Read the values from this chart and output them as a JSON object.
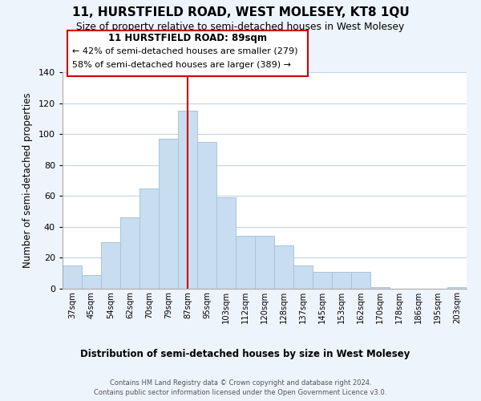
{
  "title": "11, HURSTFIELD ROAD, WEST MOLESEY, KT8 1QU",
  "subtitle": "Size of property relative to semi-detached houses in West Molesey",
  "xlabel": "Distribution of semi-detached houses by size in West Molesey",
  "ylabel": "Number of semi-detached properties",
  "bin_labels": [
    "37sqm",
    "45sqm",
    "54sqm",
    "62sqm",
    "70sqm",
    "79sqm",
    "87sqm",
    "95sqm",
    "103sqm",
    "112sqm",
    "120sqm",
    "128sqm",
    "137sqm",
    "145sqm",
    "153sqm",
    "162sqm",
    "170sqm",
    "178sqm",
    "186sqm",
    "195sqm",
    "203sqm"
  ],
  "bar_heights": [
    15,
    9,
    30,
    46,
    65,
    97,
    115,
    95,
    59,
    34,
    34,
    28,
    15,
    11,
    11,
    11,
    1,
    0,
    0,
    0,
    1
  ],
  "bar_color": "#c8ddf0",
  "bar_edge_color": "#a8c4dc",
  "highlight_index": 6,
  "vline_color": "#cc0000",
  "annotation_title": "11 HURSTFIELD ROAD: 89sqm",
  "annotation_line1": "← 42% of semi-detached houses are smaller (279)",
  "annotation_line2": "58% of semi-detached houses are larger (389) →",
  "annotation_box_color": "#ffffff",
  "annotation_box_edge": "#cc0000",
  "ylim": [
    0,
    140
  ],
  "yticks": [
    0,
    20,
    40,
    60,
    80,
    100,
    120,
    140
  ],
  "footer1": "Contains HM Land Registry data © Crown copyright and database right 2024.",
  "footer2": "Contains public sector information licensed under the Open Government Licence v3.0.",
  "bg_color": "#eef4fc",
  "plot_bg_color": "#ffffff",
  "grid_color": "#c4d4e8"
}
